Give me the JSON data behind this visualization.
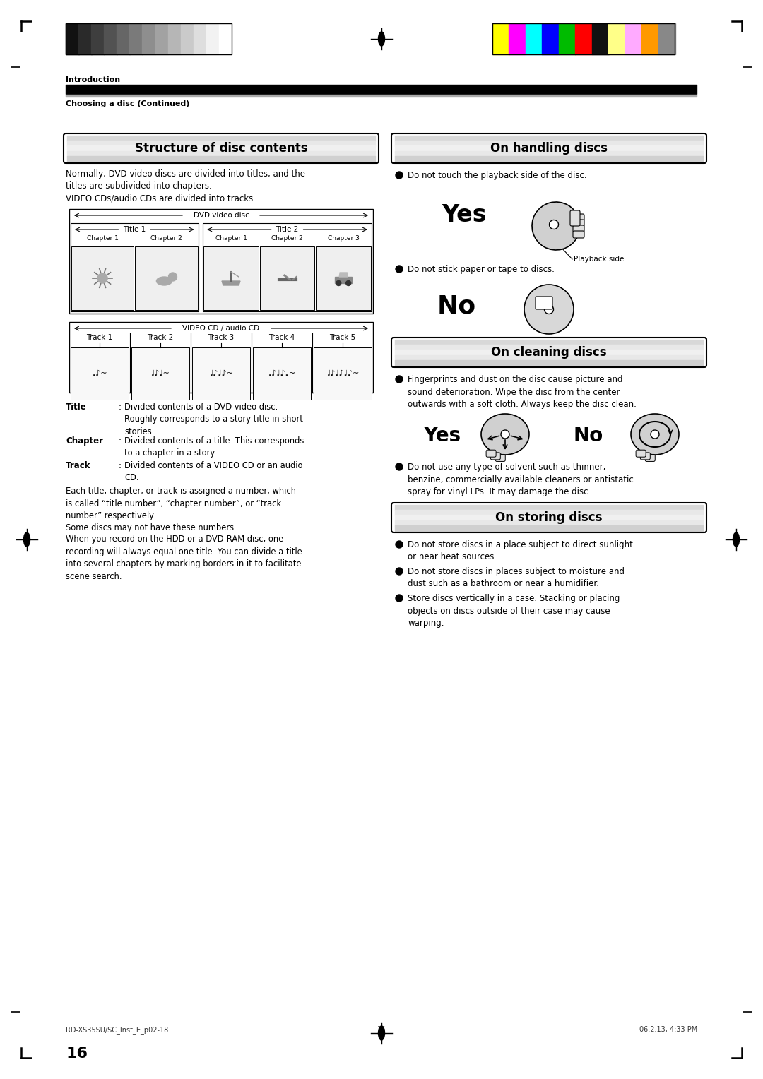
{
  "page_bg": "#ffffff",
  "page_num": "16",
  "footer_left": "RD-XS35SU/SC_Inst_E_p02-18",
  "footer_center": "16",
  "footer_right": "06.2.13, 4:33 PM",
  "header_section": "Introduction",
  "header_sub": "Choosing a disc (Continued)",
  "grayscale_colors": [
    "#111111",
    "#2a2a2a",
    "#3e3e3e",
    "#525252",
    "#666666",
    "#7a7a7a",
    "#8e8e8e",
    "#a2a2a2",
    "#b6b6b6",
    "#cacaca",
    "#dedede",
    "#f2f2f2",
    "#ffffff"
  ],
  "color_bars": [
    "#ffff00",
    "#ff00ff",
    "#00ffff",
    "#0000ff",
    "#00bb00",
    "#ff0000",
    "#111111",
    "#ffff88",
    "#ffaaff",
    "#ff9900",
    "#888888"
  ],
  "section1_title": "Structure of disc contents",
  "section2_title": "On handling discs",
  "section3_title": "On cleaning discs",
  "section4_title": "On storing discs",
  "struct_intro": "Normally, DVD video discs are divided into titles, and the\ntitles are subdivided into chapters.\nVIDEO CDs/audio CDs are divided into tracks.",
  "handling_text1": "Do not touch the playback side of the disc.",
  "handling_yes": "Yes",
  "handling_playback": "Playback side",
  "handling_text2": "Do not stick paper or tape to discs.",
  "handling_no": "No",
  "cleaning_text1": "Fingerprints and dust on the disc cause picture and\nsound deterioration. Wipe the disc from the center\noutwards with a soft cloth. Always keep the disc clean.",
  "cleaning_yes": "Yes",
  "cleaning_no": "No",
  "cleaning_text2": "Do not use any type of solvent such as thinner,\nbenzine, commercially available cleaners or antistatic\nspray for vinyl LPs. It may damage the disc.",
  "storing_bullets": [
    "Do not store discs in a place subject to direct sunlight\nor near heat sources.",
    "Do not store discs in places subject to moisture and\ndust such as a bathroom or near a humidifier.",
    "Store discs vertically in a case. Stacking or placing\nobjects on discs outside of their case may cause\nwarping."
  ],
  "title_def_label": "Title",
  "title_def_text": "Divided contents of a DVD video disc.\nRoughly corresponds to a story title in short\nstories.",
  "chapter_def_label": "Chapter",
  "chapter_def_text": "Divided contents of a title. This corresponds\nto a chapter in a story.",
  "track_def_label": "Track",
  "track_def_text": "Divided contents of a VIDEO CD or an audio\nCD.",
  "each_title_text": "Each title, chapter, or track is assigned a number, which\nis called “title number”, “chapter number”, or “track\nnumber” respectively.\nSome discs may not have these numbers.",
  "recording_text": "When you record on the HDD or a DVD-RAM disc, one\nrecording will always equal one title. You can divide a title\ninto several chapters by marking borders in it to facilitate\nscene search."
}
